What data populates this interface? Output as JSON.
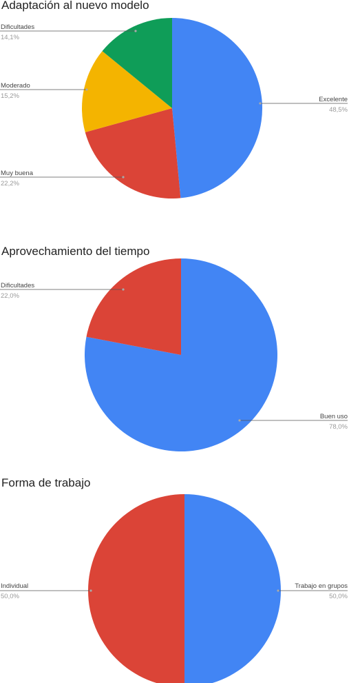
{
  "chart_data": [
    {
      "type": "pie",
      "title": "Adaptación al nuevo modelo",
      "slices": [
        {
          "label": "Excelente",
          "value": 48.5,
          "display": "48,5%",
          "color": "#4285f4"
        },
        {
          "label": "Muy buena",
          "value": 22.2,
          "display": "22,2%",
          "color": "#db4437"
        },
        {
          "label": "Moderado",
          "value": 15.2,
          "display": "15,2%",
          "color": "#f4b400"
        },
        {
          "label": "Dificultades",
          "value": 14.1,
          "display": "14,1%",
          "color": "#0f9d58"
        }
      ],
      "legend": "callouts"
    },
    {
      "type": "pie",
      "title": "Aprovechamiento del tiempo",
      "slices": [
        {
          "label": "Buen uso",
          "value": 78.0,
          "display": "78,0%",
          "color": "#4285f4"
        },
        {
          "label": "Dificultades",
          "value": 22.0,
          "display": "22,0%",
          "color": "#db4437"
        }
      ],
      "legend": "callouts"
    },
    {
      "type": "pie",
      "title": "Forma de trabajo",
      "slices": [
        {
          "label": "Trabajo en grupos",
          "value": 50.0,
          "display": "50,0%",
          "color": "#4285f4"
        },
        {
          "label": "Individual",
          "value": 50.0,
          "display": "50,0%",
          "color": "#db4437"
        }
      ],
      "legend": "callouts"
    }
  ]
}
